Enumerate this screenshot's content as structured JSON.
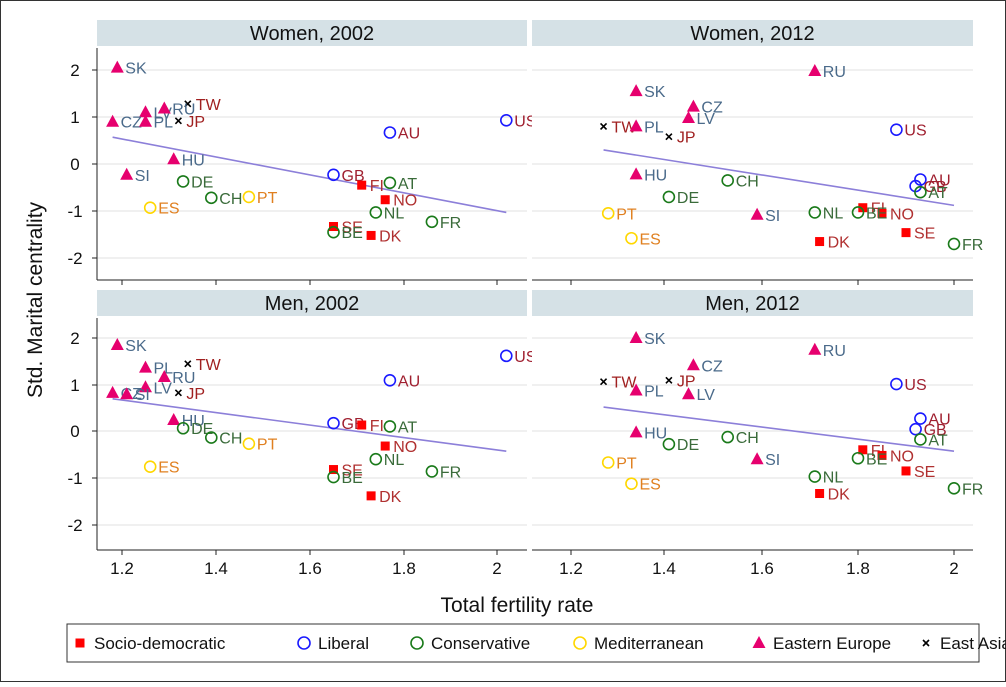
{
  "figure": {
    "ylabel": "Std. Marital centrality",
    "xlabel": "Total fertility rate"
  },
  "legend": {
    "items": [
      {
        "label": "Socio-democratic",
        "marker": "square",
        "color": "#ff0000"
      },
      {
        "label": "Liberal",
        "marker": "circle-open",
        "color": "#1a1aff"
      },
      {
        "label": "Conservative",
        "marker": "circle-open",
        "color": "#1a7a1a"
      },
      {
        "label": "Mediterranean",
        "marker": "circle-open",
        "color": "#ffd700"
      },
      {
        "label": "Eastern Europe",
        "marker": "triangle",
        "color": "#e6006e"
      },
      {
        "label": "East Asia",
        "marker": "x",
        "color": "#000000"
      }
    ]
  },
  "colors": {
    "strip": "#d5e1e6",
    "fit_line": "#8c7fd9",
    "grid": "#e2e2e2",
    "label_socio": "#b03030",
    "label_liberal": "#a02030",
    "label_conservative": "#3a6b3a",
    "label_mediterranean": "#e08020",
    "label_eastern": "#4a6a8a",
    "label_eastasia": "#a02020"
  },
  "chart_data": [
    {
      "type": "scatter",
      "title": "Women, 2002",
      "xlim": [
        1.15,
        2.05
      ],
      "ylim": [
        -2.3,
        2.3
      ],
      "xticks": [
        "1.2",
        "1.4",
        "1.6",
        "1.8",
        "2"
      ],
      "yticks": [
        "-2",
        "-1",
        "0",
        "1",
        "2"
      ],
      "fit_line": [
        [
          1.18,
          0.57
        ],
        [
          2.02,
          -1.03
        ]
      ],
      "points": [
        {
          "label": "SK",
          "x": 1.19,
          "y": 2.05,
          "group": "Eastern Europe"
        },
        {
          "label": "TW",
          "x": 1.34,
          "y": 1.28,
          "group": "East Asia"
        },
        {
          "label": "LV",
          "x": 1.25,
          "y": 1.1,
          "group": "Eastern Europe"
        },
        {
          "label": "RU",
          "x": 1.29,
          "y": 1.18,
          "group": "Eastern Europe"
        },
        {
          "label": "JP",
          "x": 1.32,
          "y": 0.92,
          "group": "East Asia"
        },
        {
          "label": "CZ",
          "x": 1.18,
          "y": 0.9,
          "group": "Eastern Europe"
        },
        {
          "label": "PL",
          "x": 1.25,
          "y": 0.9,
          "group": "Eastern Europe"
        },
        {
          "label": "US",
          "x": 2.02,
          "y": 0.93,
          "group": "Liberal"
        },
        {
          "label": "AU",
          "x": 1.77,
          "y": 0.67,
          "group": "Liberal"
        },
        {
          "label": "HU",
          "x": 1.31,
          "y": 0.1,
          "group": "Eastern Europe"
        },
        {
          "label": "SI",
          "x": 1.21,
          "y": -0.23,
          "group": "Eastern Europe"
        },
        {
          "label": "GB",
          "x": 1.65,
          "y": -0.23,
          "group": "Liberal"
        },
        {
          "label": "DE",
          "x": 1.33,
          "y": -0.37,
          "group": "Conservative"
        },
        {
          "label": "FI",
          "x": 1.71,
          "y": -0.45,
          "group": "Socio-democratic"
        },
        {
          "label": "AT",
          "x": 1.77,
          "y": -0.4,
          "group": "Conservative"
        },
        {
          "label": "CH",
          "x": 1.39,
          "y": -0.72,
          "group": "Conservative"
        },
        {
          "label": "PT",
          "x": 1.47,
          "y": -0.7,
          "group": "Mediterranean"
        },
        {
          "label": "NO",
          "x": 1.76,
          "y": -0.76,
          "group": "Socio-democratic"
        },
        {
          "label": "ES",
          "x": 1.26,
          "y": -0.93,
          "group": "Mediterranean"
        },
        {
          "label": "NL",
          "x": 1.74,
          "y": -1.03,
          "group": "Conservative"
        },
        {
          "label": "FR",
          "x": 1.86,
          "y": -1.23,
          "group": "Conservative"
        },
        {
          "label": "SE",
          "x": 1.65,
          "y": -1.33,
          "group": "Socio-democratic"
        },
        {
          "label": "BE",
          "x": 1.65,
          "y": -1.45,
          "group": "Conservative"
        },
        {
          "label": "DK",
          "x": 1.73,
          "y": -1.52,
          "group": "Socio-democratic"
        }
      ]
    },
    {
      "type": "scatter",
      "title": "Women, 2012",
      "xlim": [
        1.15,
        2.05
      ],
      "ylim": [
        -2.3,
        2.3
      ],
      "xticks": [
        "1.2",
        "1.4",
        "1.6",
        "1.8",
        "2"
      ],
      "yticks": [
        "-2",
        "-1",
        "0",
        "1",
        "2"
      ],
      "fit_line": [
        [
          1.27,
          0.3
        ],
        [
          2.0,
          -0.88
        ]
      ],
      "points": [
        {
          "label": "RU",
          "x": 1.71,
          "y": 1.98,
          "group": "Eastern Europe"
        },
        {
          "label": "SK",
          "x": 1.34,
          "y": 1.55,
          "group": "Eastern Europe"
        },
        {
          "label": "CZ",
          "x": 1.46,
          "y": 1.22,
          "group": "Eastern Europe"
        },
        {
          "label": "LV",
          "x": 1.45,
          "y": 0.98,
          "group": "Eastern Europe"
        },
        {
          "label": "TW",
          "x": 1.27,
          "y": 0.8,
          "group": "East Asia"
        },
        {
          "label": "PL",
          "x": 1.34,
          "y": 0.8,
          "group": "Eastern Europe"
        },
        {
          "label": "JP",
          "x": 1.41,
          "y": 0.58,
          "group": "East Asia"
        },
        {
          "label": "US",
          "x": 1.88,
          "y": 0.73,
          "group": "Liberal"
        },
        {
          "label": "HU",
          "x": 1.34,
          "y": -0.22,
          "group": "Eastern Europe"
        },
        {
          "label": "AU",
          "x": 1.93,
          "y": -0.33,
          "group": "Liberal"
        },
        {
          "label": "CH",
          "x": 1.53,
          "y": -0.35,
          "group": "Conservative"
        },
        {
          "label": "GB",
          "x": 1.92,
          "y": -0.47,
          "group": "Liberal"
        },
        {
          "label": "AT",
          "x": 1.93,
          "y": -0.6,
          "group": "Conservative"
        },
        {
          "label": "DE",
          "x": 1.41,
          "y": -0.7,
          "group": "Conservative"
        },
        {
          "label": "FI",
          "x": 1.81,
          "y": -0.93,
          "group": "Socio-democratic"
        },
        {
          "label": "NO",
          "x": 1.85,
          "y": -1.05,
          "group": "Socio-democratic"
        },
        {
          "label": "BE",
          "x": 1.8,
          "y": -1.03,
          "group": "Conservative"
        },
        {
          "label": "NL",
          "x": 1.71,
          "y": -1.03,
          "group": "Conservative"
        },
        {
          "label": "PT",
          "x": 1.28,
          "y": -1.05,
          "group": "Mediterranean"
        },
        {
          "label": "SI",
          "x": 1.59,
          "y": -1.08,
          "group": "Eastern Europe"
        },
        {
          "label": "SE",
          "x": 1.9,
          "y": -1.46,
          "group": "Socio-democratic"
        },
        {
          "label": "ES",
          "x": 1.33,
          "y": -1.58,
          "group": "Mediterranean"
        },
        {
          "label": "DK",
          "x": 1.72,
          "y": -1.65,
          "group": "Socio-democratic"
        },
        {
          "label": "FR",
          "x": 2.0,
          "y": -1.7,
          "group": "Conservative"
        }
      ]
    },
    {
      "type": "scatter",
      "title": "Men, 2002",
      "xlim": [
        1.15,
        2.05
      ],
      "ylim": [
        -2.3,
        2.3
      ],
      "xticks": [
        "1.2",
        "1.4",
        "1.6",
        "1.8",
        "2"
      ],
      "yticks": [
        "-2",
        "-1",
        "0",
        "1",
        "2"
      ],
      "fit_line": [
        [
          1.18,
          0.7
        ],
        [
          2.02,
          -0.43
        ]
      ],
      "points": [
        {
          "label": "SK",
          "x": 1.19,
          "y": 1.85,
          "group": "Eastern Europe"
        },
        {
          "label": "US",
          "x": 2.02,
          "y": 1.62,
          "group": "Liberal"
        },
        {
          "label": "TW",
          "x": 1.34,
          "y": 1.45,
          "group": "East Asia"
        },
        {
          "label": "PL",
          "x": 1.25,
          "y": 1.37,
          "group": "Eastern Europe"
        },
        {
          "label": "RU",
          "x": 1.29,
          "y": 1.17,
          "group": "Eastern Europe"
        },
        {
          "label": "AU",
          "x": 1.77,
          "y": 1.1,
          "group": "Liberal"
        },
        {
          "label": "LV",
          "x": 1.25,
          "y": 0.95,
          "group": "Eastern Europe"
        },
        {
          "label": "JP",
          "x": 1.32,
          "y": 0.83,
          "group": "East Asia"
        },
        {
          "label": "CZ",
          "x": 1.18,
          "y": 0.83,
          "group": "Eastern Europe"
        },
        {
          "label": "SI",
          "x": 1.21,
          "y": 0.8,
          "group": "Eastern Europe"
        },
        {
          "label": "HU",
          "x": 1.31,
          "y": 0.24,
          "group": "Eastern Europe"
        },
        {
          "label": "GB",
          "x": 1.65,
          "y": 0.17,
          "group": "Liberal"
        },
        {
          "label": "FI",
          "x": 1.71,
          "y": 0.13,
          "group": "Socio-democratic"
        },
        {
          "label": "AT",
          "x": 1.77,
          "y": 0.1,
          "group": "Conservative"
        },
        {
          "label": "DE",
          "x": 1.33,
          "y": 0.06,
          "group": "Conservative"
        },
        {
          "label": "CH",
          "x": 1.39,
          "y": -0.14,
          "group": "Conservative"
        },
        {
          "label": "PT",
          "x": 1.47,
          "y": -0.27,
          "group": "Mediterranean"
        },
        {
          "label": "NO",
          "x": 1.76,
          "y": -0.32,
          "group": "Socio-democratic"
        },
        {
          "label": "NL",
          "x": 1.74,
          "y": -0.6,
          "group": "Conservative"
        },
        {
          "label": "ES",
          "x": 1.26,
          "y": -0.76,
          "group": "Mediterranean"
        },
        {
          "label": "SE",
          "x": 1.65,
          "y": -0.82,
          "group": "Socio-democratic"
        },
        {
          "label": "FR",
          "x": 1.86,
          "y": -0.86,
          "group": "Conservative"
        },
        {
          "label": "BE",
          "x": 1.65,
          "y": -0.98,
          "group": "Conservative"
        },
        {
          "label": "DK",
          "x": 1.73,
          "y": -1.38,
          "group": "Socio-democratic"
        }
      ]
    },
    {
      "type": "scatter",
      "title": "Men, 2012",
      "xlim": [
        1.15,
        2.05
      ],
      "ylim": [
        -2.3,
        2.3
      ],
      "xticks": [
        "1.2",
        "1.4",
        "1.6",
        "1.8",
        "2"
      ],
      "yticks": [
        "-2",
        "-1",
        "0",
        "1",
        "2"
      ],
      "fit_line": [
        [
          1.27,
          0.52
        ],
        [
          2.0,
          -0.43
        ]
      ],
      "points": [
        {
          "label": "SK",
          "x": 1.34,
          "y": 2.0,
          "group": "Eastern Europe"
        },
        {
          "label": "RU",
          "x": 1.71,
          "y": 1.75,
          "group": "Eastern Europe"
        },
        {
          "label": "CZ",
          "x": 1.46,
          "y": 1.42,
          "group": "Eastern Europe"
        },
        {
          "label": "TW",
          "x": 1.27,
          "y": 1.07,
          "group": "East Asia"
        },
        {
          "label": "JP",
          "x": 1.41,
          "y": 1.1,
          "group": "East Asia"
        },
        {
          "label": "US",
          "x": 1.88,
          "y": 1.02,
          "group": "Liberal"
        },
        {
          "label": "PL",
          "x": 1.34,
          "y": 0.88,
          "group": "Eastern Europe"
        },
        {
          "label": "LV",
          "x": 1.45,
          "y": 0.8,
          "group": "Eastern Europe"
        },
        {
          "label": "AU",
          "x": 1.93,
          "y": 0.27,
          "group": "Liberal"
        },
        {
          "label": "GB",
          "x": 1.92,
          "y": 0.04,
          "group": "Liberal"
        },
        {
          "label": "HU",
          "x": 1.34,
          "y": -0.03,
          "group": "Eastern Europe"
        },
        {
          "label": "CH",
          "x": 1.53,
          "y": -0.13,
          "group": "Conservative"
        },
        {
          "label": "AT",
          "x": 1.93,
          "y": -0.18,
          "group": "Conservative"
        },
        {
          "label": "DE",
          "x": 1.41,
          "y": -0.28,
          "group": "Conservative"
        },
        {
          "label": "FI",
          "x": 1.81,
          "y": -0.4,
          "group": "Socio-democratic"
        },
        {
          "label": "NO",
          "x": 1.85,
          "y": -0.52,
          "group": "Socio-democratic"
        },
        {
          "label": "BE",
          "x": 1.8,
          "y": -0.58,
          "group": "Conservative"
        },
        {
          "label": "SI",
          "x": 1.59,
          "y": -0.6,
          "group": "Eastern Europe"
        },
        {
          "label": "PT",
          "x": 1.28,
          "y": -0.67,
          "group": "Mediterranean"
        },
        {
          "label": "SE",
          "x": 1.9,
          "y": -0.85,
          "group": "Socio-democratic"
        },
        {
          "label": "NL",
          "x": 1.71,
          "y": -0.97,
          "group": "Conservative"
        },
        {
          "label": "ES",
          "x": 1.33,
          "y": -1.12,
          "group": "Mediterranean"
        },
        {
          "label": "FR",
          "x": 2.0,
          "y": -1.22,
          "group": "Conservative"
        },
        {
          "label": "DK",
          "x": 1.72,
          "y": -1.33,
          "group": "Socio-democratic"
        }
      ]
    }
  ]
}
